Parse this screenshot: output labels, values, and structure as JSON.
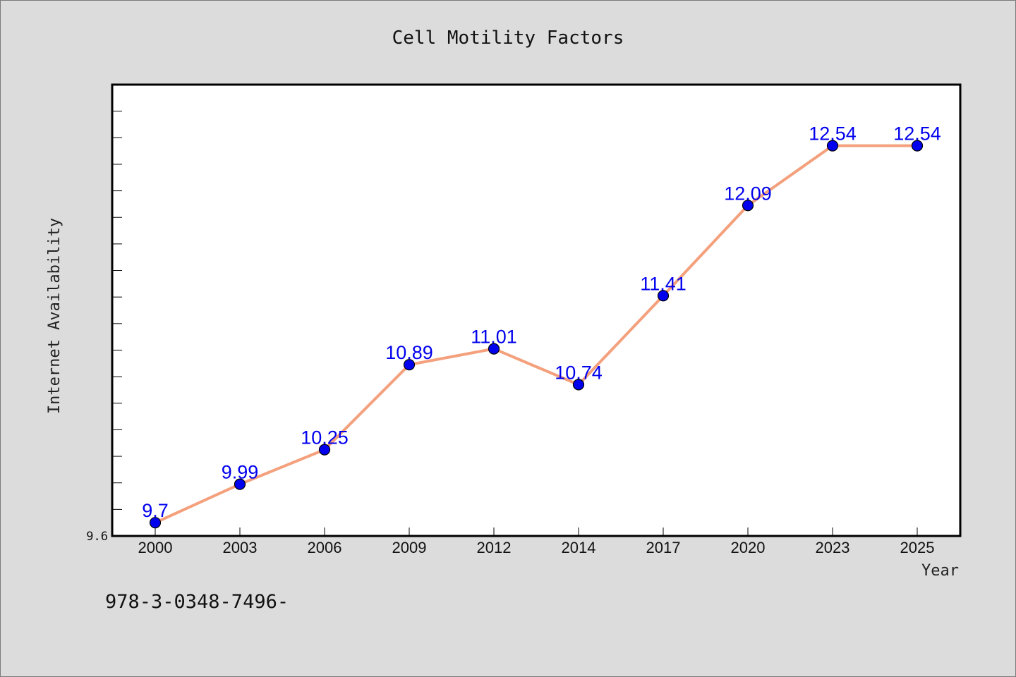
{
  "chart_data": {
    "type": "line",
    "title": "Cell Motility Factors",
    "xlabel": "Year",
    "ylabel": "Internet Availability",
    "categories": [
      "2000",
      "2003",
      "2006",
      "2009",
      "2012",
      "2014",
      "2017",
      "2020",
      "2023",
      "2025"
    ],
    "series": [
      {
        "values": [
          9.7,
          9.99,
          10.25,
          10.89,
          11.01,
          10.74,
          11.41,
          12.09,
          12.54,
          12.54
        ],
        "labels": [
          "9.7",
          "9.99",
          "10.25",
          "10.89",
          "11.01",
          "10.74",
          "11.41",
          "12.09",
          "12.54",
          "12.54"
        ],
        "line_color": "#f4a07c",
        "marker_color": "#0000ee"
      }
    ],
    "ylim": [
      9.6,
      13.0
    ],
    "y_tick_labels": [
      "9.6"
    ],
    "y_minor_tick_step": 0.2,
    "grid": false,
    "legend": "none"
  },
  "footer": {
    "text": "978-3-0348-7496-"
  }
}
